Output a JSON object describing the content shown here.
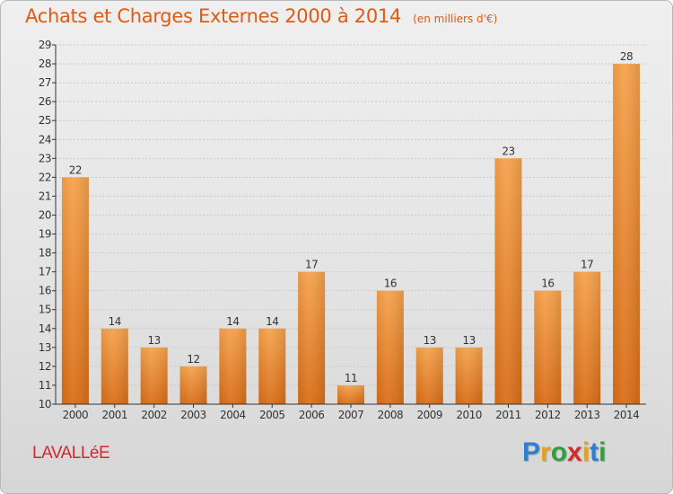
{
  "header": {
    "title": "Achats et Charges Externes 2000 à 2014",
    "unit": "(en milliers d'€)"
  },
  "footer": {
    "town": "LAVALLéE",
    "logo_letters": [
      "P",
      "r",
      "o",
      "x",
      "i",
      "t",
      "i"
    ],
    "logo_colors": [
      "#2f7fd0",
      "#e7a21a",
      "#2fa03a",
      "#d62a2a",
      "#e7a21a",
      "#2f7fd0",
      "#2fa03a"
    ]
  },
  "colors": {
    "title": "#e05a10",
    "bar_light": "#f6a24c",
    "bar_dark": "#d96e18",
    "town": "#d4282e"
  },
  "chart_data": {
    "type": "bar",
    "title": "Achats et Charges Externes 2000 à 2014",
    "subtitle": "(en milliers d'€)",
    "categories": [
      "2000",
      "2001",
      "2002",
      "2003",
      "2004",
      "2005",
      "2006",
      "2007",
      "2008",
      "2009",
      "2010",
      "2011",
      "2012",
      "2013",
      "2014"
    ],
    "values": [
      22,
      14,
      13,
      12,
      14,
      14,
      17,
      11,
      16,
      13,
      13,
      23,
      16,
      17,
      28
    ],
    "ylim": [
      10,
      29
    ],
    "yticks": [
      10,
      11,
      12,
      13,
      14,
      15,
      16,
      17,
      18,
      19,
      20,
      21,
      22,
      23,
      24,
      25,
      26,
      27,
      28,
      29
    ],
    "grid": true,
    "data_labels": true
  }
}
